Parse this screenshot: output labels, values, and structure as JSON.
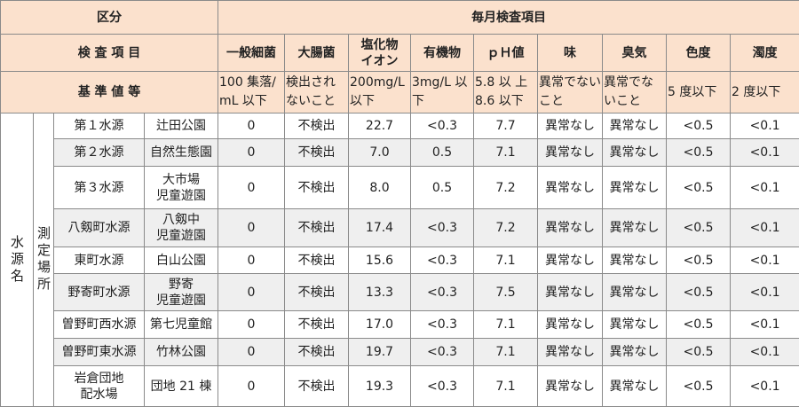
{
  "header": {
    "category": "区分",
    "monthly": "毎月検査項目",
    "items_label": "検 査 項 目",
    "standard_label": "基 準 値 等",
    "source_label": "水源名",
    "location_label": "測定場所"
  },
  "columns": [
    {
      "name": [
        "一般細菌"
      ],
      "standard": "100 集落/mL 以下"
    },
    {
      "name": [
        "大腸菌"
      ],
      "standard": "検出されないこと"
    },
    {
      "name": [
        "塩化物",
        "イオン"
      ],
      "standard": "200mg/L 以下"
    },
    {
      "name": [
        "有機物"
      ],
      "standard": "3mg/L 以下"
    },
    {
      "name": [
        "ｐＨ値"
      ],
      "standard": "5.8 以 上 8.6 以下"
    },
    {
      "name": [
        "味"
      ],
      "standard": "異常でないこと"
    },
    {
      "name": [
        "臭気"
      ],
      "standard": "異常でないこと"
    },
    {
      "name": [
        "色度"
      ],
      "standard": "5 度以下"
    },
    {
      "name": [
        "濁度"
      ],
      "standard": "2 度以下"
    }
  ],
  "rows": [
    {
      "source": [
        "第１水源"
      ],
      "location": [
        "辻田公園"
      ],
      "values": [
        "0",
        "不検出",
        "22.7",
        "<0.3",
        "7.7",
        "異常なし",
        "異常なし",
        "<0.5",
        "<0.1"
      ]
    },
    {
      "source": [
        "第２水源"
      ],
      "location": [
        "自然生態園"
      ],
      "values": [
        "0",
        "不検出",
        "7.0",
        "0.5",
        "7.1",
        "異常なし",
        "異常なし",
        "<0.5",
        "<0.1"
      ]
    },
    {
      "source": [
        "第３水源"
      ],
      "location": [
        "大市場",
        "児童遊園"
      ],
      "values": [
        "0",
        "不検出",
        "8.0",
        "0.5",
        "7.2",
        "異常なし",
        "異常なし",
        "<0.5",
        "<0.1"
      ]
    },
    {
      "source": [
        "八剱町水源"
      ],
      "location": [
        "八剱中",
        "児童遊園"
      ],
      "values": [
        "0",
        "不検出",
        "17.4",
        "<0.3",
        "7.2",
        "異常なし",
        "異常なし",
        "<0.5",
        "<0.1"
      ]
    },
    {
      "source": [
        "東町水源"
      ],
      "location": [
        "白山公園"
      ],
      "values": [
        "0",
        "不検出",
        "15.6",
        "<0.3",
        "7.1",
        "異常なし",
        "異常なし",
        "<0.5",
        "<0.1"
      ]
    },
    {
      "source": [
        "野寄町水源"
      ],
      "location": [
        "野寄",
        "児童遊園"
      ],
      "values": [
        "0",
        "不検出",
        "13.3",
        "<0.3",
        "7.5",
        "異常なし",
        "異常なし",
        "<0.5",
        "<0.1"
      ]
    },
    {
      "source": [
        "曽野町西水源"
      ],
      "location": [
        "第七児童館"
      ],
      "values": [
        "0",
        "不検出",
        "17.0",
        "<0.3",
        "7.1",
        "異常なし",
        "異常なし",
        "<0.5",
        "<0.1"
      ]
    },
    {
      "source": [
        "曽野町東水源"
      ],
      "location": [
        "竹林公園"
      ],
      "values": [
        "0",
        "不検出",
        "19.7",
        "<0.3",
        "7.1",
        "異常なし",
        "異常なし",
        "<0.5",
        "<0.1"
      ]
    },
    {
      "source": [
        "岩倉団地",
        "配水場"
      ],
      "location": [
        "団地 21 棟"
      ],
      "values": [
        "0",
        "不検出",
        "19.3",
        "<0.3",
        "7.1",
        "異常なし",
        "異常なし",
        "<0.5",
        "<0.1"
      ]
    }
  ]
}
